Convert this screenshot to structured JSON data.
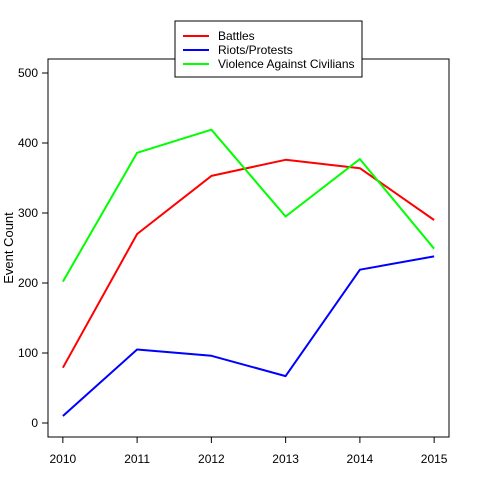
{
  "chart_data": {
    "type": "line",
    "title": "",
    "xlabel": "",
    "ylabel": "Event Count",
    "x": [
      2010,
      2011,
      2012,
      2013,
      2014,
      2015
    ],
    "x_tick_labels": [
      "2010",
      "2011",
      "2012",
      "2013",
      "2014",
      "2015"
    ],
    "y_ticks": [
      0,
      100,
      200,
      300,
      400,
      500
    ],
    "y_tick_labels": [
      "0",
      "100",
      "200",
      "300",
      "400",
      "500"
    ],
    "ylim": [
      -20,
      520
    ],
    "xlim": [
      2009.8,
      2015.2
    ],
    "grid": false,
    "legend_position": "top-center",
    "series": [
      {
        "name": "Battles",
        "color": "#ff0000",
        "values": [
          79,
          270,
          353,
          376,
          364,
          290
        ]
      },
      {
        "name": "Riots/Protests",
        "color": "#0000ff",
        "values": [
          10,
          105,
          96,
          67,
          219,
          238
        ]
      },
      {
        "name": "Violence Against Civilians",
        "color": "#00ff00",
        "values": [
          202,
          386,
          419,
          295,
          377,
          249
        ]
      }
    ]
  }
}
